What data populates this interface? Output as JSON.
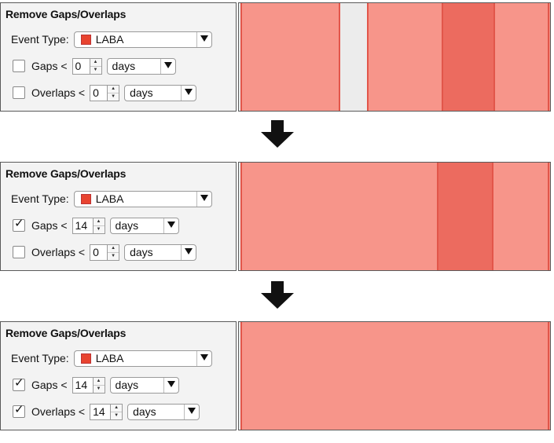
{
  "steps": [
    {
      "title": "Remove Gaps/Overlaps",
      "event_type_label": "Event Type:",
      "event_type_value": "LABA",
      "event_color": "#e8432f",
      "gaps": {
        "checked": false,
        "label": "Gaps <",
        "value": "0",
        "unit": "days"
      },
      "overlaps": {
        "checked": false,
        "label": "Overlaps <",
        "value": "0",
        "unit": "days"
      }
    },
    {
      "title": "Remove Gaps/Overlaps",
      "event_type_label": "Event Type:",
      "event_type_value": "LABA",
      "event_color": "#e8432f",
      "gaps": {
        "checked": true,
        "label": "Gaps <",
        "value": "14",
        "unit": "days"
      },
      "overlaps": {
        "checked": false,
        "label": "Overlaps <",
        "value": "0",
        "unit": "days"
      }
    },
    {
      "title": "Remove Gaps/Overlaps",
      "event_type_label": "Event Type:",
      "event_type_value": "LABA",
      "event_color": "#e8432f",
      "gaps": {
        "checked": true,
        "label": "Gaps <",
        "value": "14",
        "unit": "days"
      },
      "overlaps": {
        "checked": true,
        "label": "Overlaps <",
        "value": "14",
        "unit": "days"
      }
    }
  ],
  "icons": {
    "down_arrow": "arrow-down-icon",
    "dropdown": "chevron-down-icon",
    "checkmark": "checkmark-icon"
  },
  "colors": {
    "event_bar": "#f7958a",
    "event_overlap": "#ec6b5f",
    "event_edge": "#e2564a"
  }
}
